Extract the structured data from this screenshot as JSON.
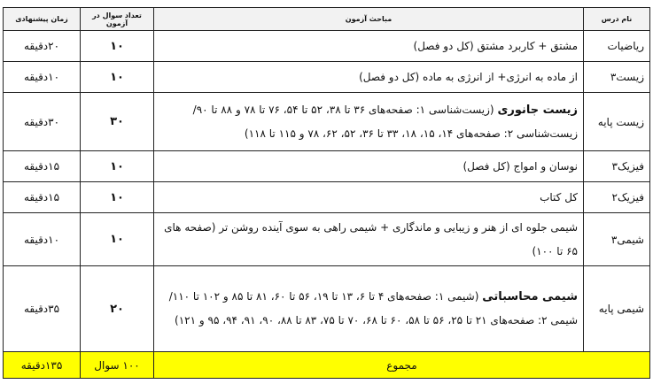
{
  "headers": {
    "name": "نام درس",
    "topics": "مباحث آزمون",
    "count": "تعداد سوال در آزمون",
    "time": "زمان پیشنهادی"
  },
  "rows": [
    {
      "name": "ریاضیات",
      "bold": "",
      "topics": "مشتق + کاربرد مشتق (کل دو فصل)",
      "count": "۱۰",
      "time": "۲۰دقیقه"
    },
    {
      "name": "زیست۳",
      "bold": "",
      "topics": "از ماده به انرژی+ از انرژی به ماده (کل دو فصل)",
      "count": "۱۰",
      "time": "۱۰دقیقه"
    },
    {
      "name": "زیست پایه",
      "bold": "زیست جانوری",
      "topics": " (زیست‌شناسی ۱: صفحه‌های ۳۶ تا ۳۸، ۵۲ تا ۵۴، ۷۶ تا ۷۸ و ۸۸ تا ۹۰/ زیست‌شناسی ۲: صفحه‌های ۱۴، ۱۵، ۱۸، ۳۳ تا ۳۶، ۵۲، ۶۲، ۷۸ و ۱۱۵ تا ۱۱۸)",
      "count": "۳۰",
      "time": "۳۰دقیقه"
    },
    {
      "name": "فیزیک۳",
      "bold": "",
      "topics": "نوسان و امواج (کل فصل)",
      "count": "۱۰",
      "time": "۱۵دقیقه"
    },
    {
      "name": "فیزیک۲",
      "bold": "",
      "topics": "کل کتاب",
      "count": "۱۰",
      "time": "۱۵دقیقه"
    },
    {
      "name": "شیمی۳",
      "bold": "",
      "topics": "شیمی جلوه ای از هنر و زیبایی و ماندگاری + شیمی راهی به سوی آینده روشن تر (صفحه های ۶۵ تا ۱۰۰)",
      "count": "۱۰",
      "time": "۱۰دقیقه"
    },
    {
      "name": "شیمی پایه",
      "bold": "شیمی محاسباتی",
      "topics": " (شیمی ۱: صفحه‌های ۴ تا ۶، ۱۳ تا ۱۹، ۵۶ تا ۶۰، ۸۱ تا ۸۵ و ۱۰۲ تا ۱۱۰/ شیمی ۲: صفحه‌های ۲۱ تا ۲۵، ۵۶ تا ۵۸، ۶۰ تا ۶۸، ۷۰ تا ۷۵، ۸۳ تا ۸۸، ۹۰، ۹۱، ۹۴، ۹۵ و ۱۲۱)",
      "count": "۲۰",
      "time": "۳۵دقیقه"
    }
  ],
  "total": {
    "label": "مجموع",
    "count": "۱۰۰ سوال",
    "time": "۱۳۵دقیقه"
  },
  "colors": {
    "total_bg": "#ffff00"
  }
}
